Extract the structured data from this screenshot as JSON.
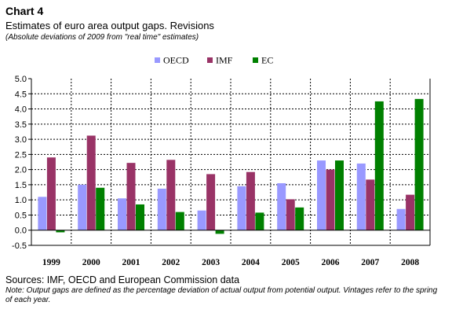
{
  "header": {
    "chart_number": "Chart 4",
    "title": "Estimates of euro area output gaps. Revisions",
    "subtitle": "(Absolute deviations of 2009 from \"real time\" estimates)"
  },
  "footer": {
    "source": "Sources: IMF, OECD and European Commission data",
    "note": "Note: Output gaps are defined as the percentage deviation of actual output from potential output. Vintages refer to the spring of each year."
  },
  "colors": {
    "OECD": "#9999ff",
    "IMF": "#993366",
    "EC": "#008000"
  },
  "chart_data": {
    "type": "bar",
    "categories": [
      "1999",
      "2000",
      "2001",
      "2002",
      "2003",
      "2004",
      "2005",
      "2006",
      "2007",
      "2008"
    ],
    "series": [
      {
        "name": "OECD",
        "values": [
          1.1,
          1.5,
          1.05,
          1.37,
          0.65,
          1.45,
          1.55,
          2.3,
          2.2,
          0.7
        ]
      },
      {
        "name": "IMF",
        "values": [
          2.4,
          3.12,
          2.22,
          2.32,
          1.85,
          1.92,
          1.02,
          2.0,
          1.67,
          1.17
        ]
      },
      {
        "name": "EC",
        "values": [
          -0.07,
          1.4,
          0.85,
          0.6,
          -0.12,
          0.58,
          0.75,
          2.3,
          4.25,
          4.33
        ]
      }
    ],
    "ylim": [
      -0.5,
      5.0
    ],
    "yticks": [
      "5.0",
      "4.5",
      "4.0",
      "3.5",
      "3.0",
      "2.5",
      "2.0",
      "1.5",
      "1.0",
      "0.5",
      "0.0",
      "-0.5"
    ],
    "grid": true,
    "legend_position": "top"
  }
}
